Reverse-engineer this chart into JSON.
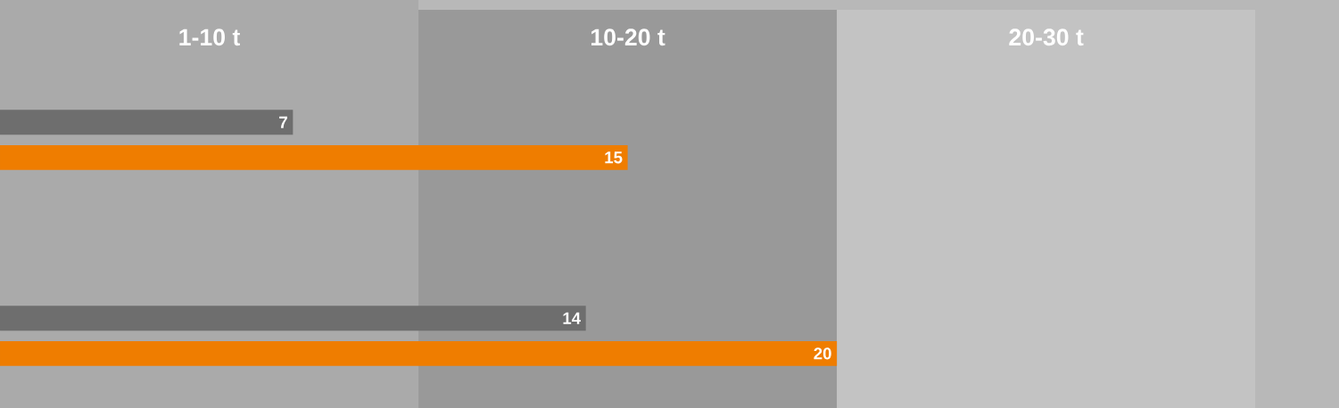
{
  "chart_data": {
    "type": "bar",
    "orientation": "horizontal",
    "categories": [
      null,
      null
    ],
    "series": [
      {
        "color": "#6e6e6e",
        "values": [
          7,
          14
        ]
      },
      {
        "color": "#ef7d00",
        "values": [
          15,
          20
        ]
      }
    ],
    "xlim": [
      0,
      32
    ],
    "data_labels": true,
    "tick_labels": false,
    "bands": [
      {
        "axis": "x",
        "from": 0,
        "to": 10,
        "label": "1-10 t",
        "color": "#aaaaaa"
      },
      {
        "axis": "x",
        "from": 10,
        "to": 20,
        "label": "10-20 t",
        "color": "#999999"
      },
      {
        "axis": "x",
        "from": 20,
        "to": 30,
        "label": "20-30 t",
        "color": "#c3c3c3"
      }
    ]
  }
}
